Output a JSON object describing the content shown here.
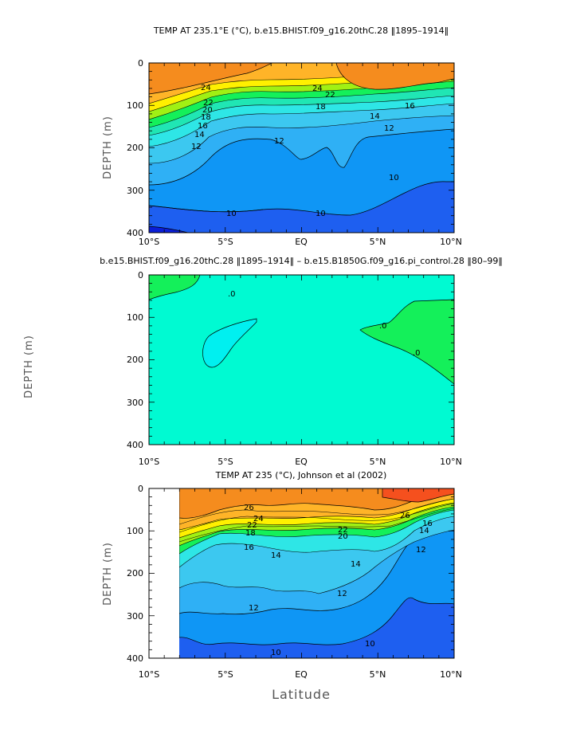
{
  "chart_data": [
    {
      "type": "heatmap",
      "title": "TEMP AT 235.1°E (°C), b.e15.BHIST.f09_g16.20thC.28 ‖1895–1914‖",
      "xlabel": "",
      "ylabel": "DEPTH (m)",
      "xlim": [
        -10,
        10
      ],
      "ylim": [
        400,
        0
      ],
      "xticks": [
        "10°S",
        "5°S",
        "EQ",
        "5°N",
        "10°N"
      ],
      "yticks": [
        "0",
        "100",
        "200",
        "300",
        "400"
      ],
      "contour_labels": [
        "24",
        "22",
        "20",
        "18",
        "16",
        "14",
        "12",
        "12",
        "10",
        "10",
        "10",
        "24",
        "22",
        "18",
        "16",
        "14",
        "12"
      ],
      "bands": [
        {
          "level": 8,
          "color": "#0a1ed7"
        },
        {
          "level": 10,
          "color": "#1e5ff0"
        },
        {
          "level": 11,
          "color": "#0f96f5"
        },
        {
          "level": 12,
          "color": "#2fb0f5"
        },
        {
          "level": 13,
          "color": "#3cc8f0"
        },
        {
          "level": 14,
          "color": "#2ee6e6"
        },
        {
          "level": 15,
          "color": "#20e6b4"
        },
        {
          "level": 16,
          "color": "#14f05a"
        },
        {
          "level": 18,
          "color": "#a0f014"
        },
        {
          "level": 20,
          "color": "#fff000"
        },
        {
          "level": 22,
          "color": "#ffb428"
        },
        {
          "level": 24,
          "color": "#f58c1e"
        }
      ]
    },
    {
      "type": "heatmap",
      "title": "b.e15.BHIST.f09_g16.20thC.28 ‖1895–1914‖ – b.e15.B1850G.f09_g16.pi_control.28 ‖80–99‖",
      "xlabel": "",
      "ylabel": "DEPTH (m)",
      "xlim": [
        -10,
        10
      ],
      "ylim": [
        400,
        0
      ],
      "xticks": [
        "10°S",
        "5°S",
        "EQ",
        "5°N",
        "10°N"
      ],
      "yticks": [
        "0",
        "100",
        "200",
        "300",
        "400"
      ],
      "contour_labels": [
        ".0",
        ".0",
        ".0"
      ],
      "bands": [
        {
          "level": -0.2,
          "color": "#00f0f0"
        },
        {
          "level": 0,
          "color": "#00fad2"
        },
        {
          "level": 0.2,
          "color": "#14f05a"
        }
      ]
    },
    {
      "type": "heatmap",
      "title": "TEMP AT 235 (°C), Johnson et al (2002)",
      "xlabel": "Latitude",
      "ylabel": "DEPTH (m)",
      "xlim": [
        -10,
        10
      ],
      "ylim": [
        400,
        0
      ],
      "data_xlim": [
        -8,
        10
      ],
      "xticks": [
        "10°S",
        "5°S",
        "EQ",
        "5°N",
        "10°N"
      ],
      "yticks": [
        "0",
        "100",
        "200",
        "300",
        "400"
      ],
      "contour_labels": [
        "26",
        "24",
        "22",
        "18",
        "16",
        "14",
        "14",
        "12",
        "12",
        "12",
        "10",
        "10",
        "26",
        "22",
        "20",
        "16",
        "14"
      ],
      "bands": [
        {
          "level": 10,
          "color": "#1e5ff0"
        },
        {
          "level": 11,
          "color": "#0f96f5"
        },
        {
          "level": 12,
          "color": "#2fb0f5"
        },
        {
          "level": 13,
          "color": "#3cc8f0"
        },
        {
          "level": 14,
          "color": "#2ee6e6"
        },
        {
          "level": 16,
          "color": "#14f05a"
        },
        {
          "level": 18,
          "color": "#a0f014"
        },
        {
          "level": 20,
          "color": "#fff000"
        },
        {
          "level": 22,
          "color": "#ffb428"
        },
        {
          "level": 24,
          "color": "#f58c1e"
        },
        {
          "level": 26,
          "color": "#f5501e"
        }
      ]
    }
  ]
}
